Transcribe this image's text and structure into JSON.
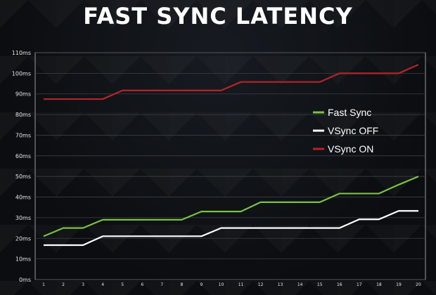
{
  "title": "FAST SYNC LATENCY",
  "chart_data": {
    "type": "line",
    "title": "FAST SYNC LATENCY",
    "xlabel": "",
    "ylabel": "",
    "x": [
      1,
      2,
      3,
      4,
      5,
      6,
      7,
      8,
      9,
      10,
      11,
      12,
      13,
      14,
      15,
      16,
      17,
      18,
      19,
      20
    ],
    "xlim": [
      1,
      20
    ],
    "ylim": [
      0,
      110
    ],
    "y_ticks": [
      0,
      10,
      20,
      30,
      40,
      50,
      60,
      70,
      80,
      90,
      100,
      110
    ],
    "y_tick_suffix": "ms",
    "grid": true,
    "legend_position": "right",
    "series": [
      {
        "name": "Fast Sync",
        "color": "#7ac143",
        "values": [
          21,
          25,
          25,
          29,
          29,
          29,
          29,
          29,
          33,
          33,
          33,
          37.5,
          37.5,
          37.5,
          37.5,
          41.7,
          41.7,
          41.7,
          46,
          50
        ]
      },
      {
        "name": "VSync OFF",
        "color": "#ffffff",
        "values": [
          16.7,
          16.7,
          16.7,
          21,
          21,
          21,
          21,
          21,
          21,
          25,
          25,
          25,
          25,
          25,
          25,
          25,
          29.2,
          29.2,
          33.3,
          33.3
        ]
      },
      {
        "name": "VSync ON",
        "color": "#b5242a",
        "values": [
          87.5,
          87.5,
          87.5,
          87.5,
          91.7,
          91.7,
          91.7,
          91.7,
          91.7,
          91.7,
          95.8,
          95.8,
          95.8,
          95.8,
          95.8,
          100,
          100,
          100,
          100,
          104.2
        ]
      }
    ]
  }
}
